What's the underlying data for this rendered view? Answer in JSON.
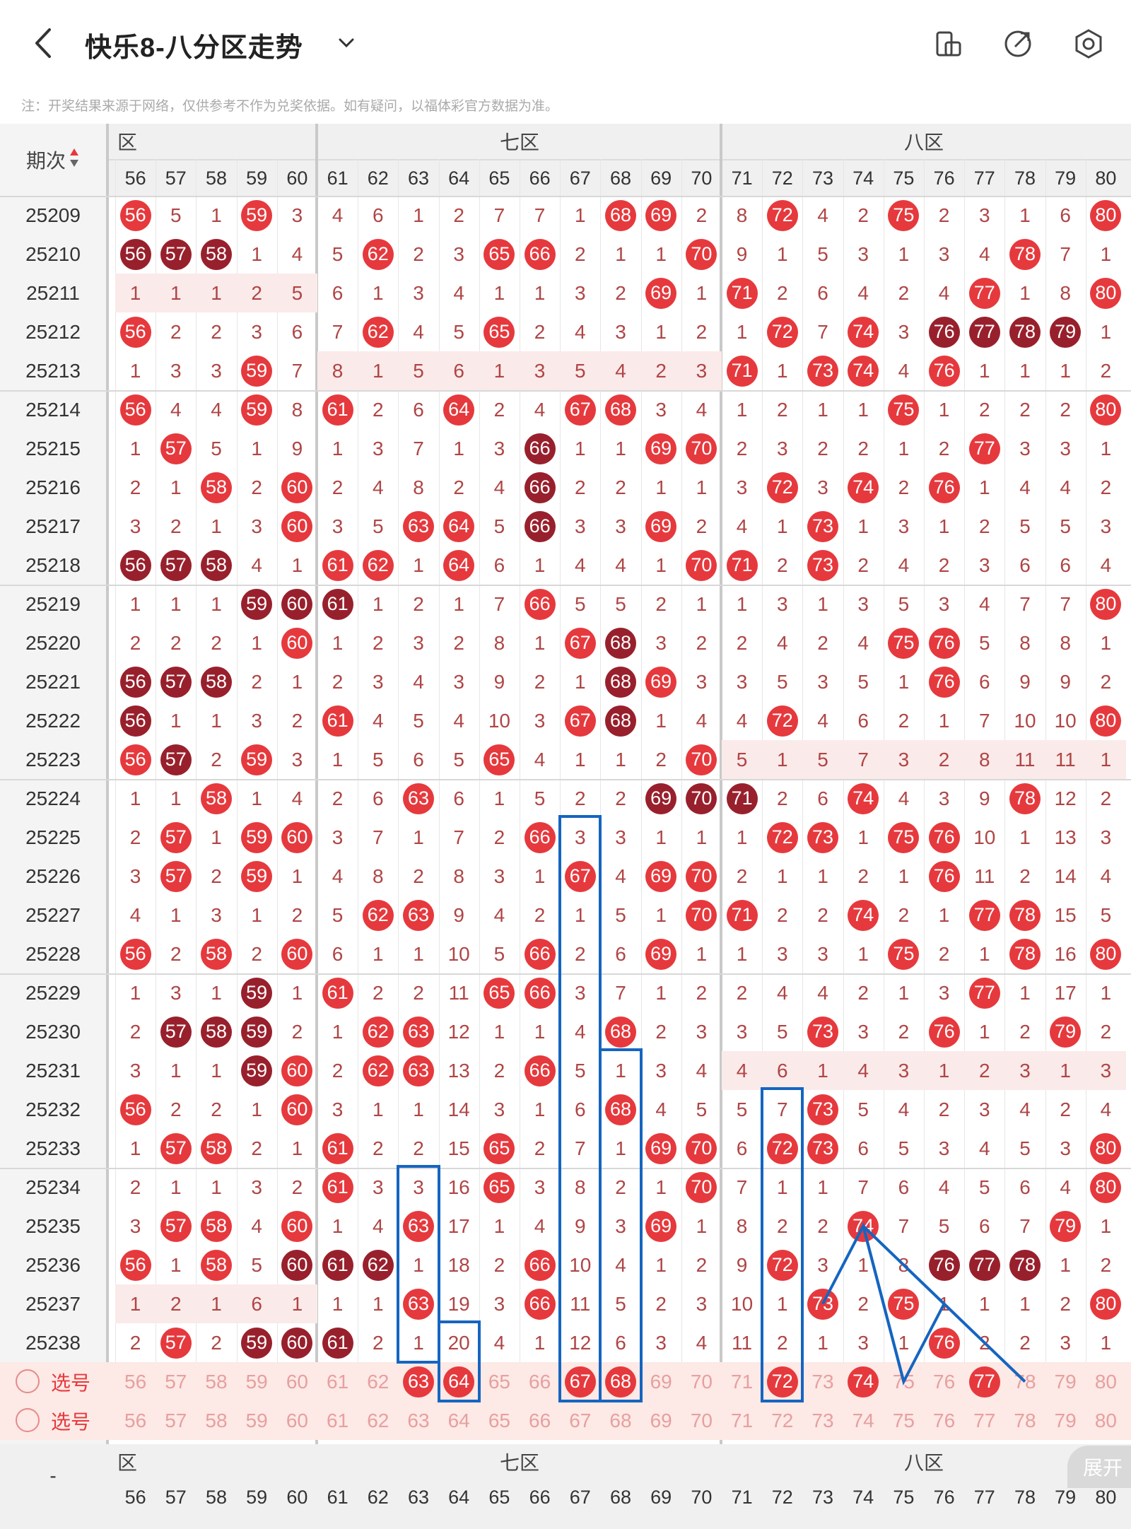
{
  "header": {
    "title": "快乐8-八分区走势",
    "back_icon": "back-arrow-icon",
    "dropdown_icon": "chevron-down-icon",
    "icons": [
      "phone-rotate-icon",
      "share-icon",
      "settings-icon"
    ]
  },
  "note": "注：开奖结果来源于网络，仅供参考不作为兑奖依据。如有疑问，以福体彩官方数据为准。",
  "table": {
    "period_header": "期次",
    "zones_top": [
      "六区",
      "七区",
      "八区"
    ],
    "columns": [
      56,
      57,
      58,
      59,
      60,
      61,
      62,
      63,
      64,
      65,
      66,
      67,
      68,
      69,
      70,
      71,
      72,
      73,
      74,
      75,
      76,
      77,
      78,
      79,
      80
    ],
    "rows": [
      {
        "p": "25209",
        "v": [
          "56",
          "5",
          "1",
          "59",
          "3",
          "4",
          "6",
          "1",
          "2",
          "7",
          "7",
          "1",
          "68",
          "69",
          "2",
          "8",
          "72",
          "4",
          "2",
          "75",
          "2",
          "3",
          "1",
          "6",
          "80"
        ]
      },
      {
        "p": "25210",
        "v": [
          "56",
          "57",
          "58",
          "1",
          "4",
          "5",
          "62",
          "2",
          "3",
          "65",
          "66",
          "2",
          "1",
          "1",
          "70",
          "9",
          "1",
          "5",
          "3",
          "1",
          "3",
          "4",
          "78",
          "7",
          "1"
        ]
      },
      {
        "p": "25211",
        "v": [
          "1",
          "1",
          "1",
          "2",
          "5",
          "6",
          "1",
          "3",
          "4",
          "1",
          "1",
          "3",
          "2",
          "69",
          "1",
          "71",
          "2",
          "6",
          "4",
          "2",
          "4",
          "77",
          "1",
          "8",
          "80"
        ]
      },
      {
        "p": "25212",
        "v": [
          "56",
          "2",
          "2",
          "3",
          "6",
          "7",
          "62",
          "4",
          "5",
          "65",
          "2",
          "4",
          "3",
          "1",
          "2",
          "1",
          "72",
          "7",
          "74",
          "3",
          "76",
          "77",
          "78",
          "79",
          "1"
        ]
      },
      {
        "p": "25213",
        "v": [
          "1",
          "3",
          "3",
          "59",
          "7",
          "8",
          "1",
          "5",
          "6",
          "1",
          "3",
          "5",
          "4",
          "2",
          "3",
          "71",
          "1",
          "73",
          "74",
          "4",
          "76",
          "1",
          "1",
          "1",
          "2"
        ]
      },
      {
        "p": "25214",
        "v": [
          "56",
          "4",
          "4",
          "59",
          "8",
          "61",
          "2",
          "6",
          "64",
          "2",
          "4",
          "67",
          "68",
          "3",
          "4",
          "1",
          "2",
          "1",
          "1",
          "75",
          "1",
          "2",
          "2",
          "2",
          "80"
        ]
      },
      {
        "p": "25215",
        "v": [
          "1",
          "57",
          "5",
          "1",
          "9",
          "1",
          "3",
          "7",
          "1",
          "3",
          "66",
          "1",
          "1",
          "69",
          "70",
          "2",
          "3",
          "2",
          "2",
          "1",
          "2",
          "77",
          "3",
          "3",
          "1"
        ]
      },
      {
        "p": "25216",
        "v": [
          "2",
          "1",
          "58",
          "2",
          "60",
          "2",
          "4",
          "8",
          "2",
          "4",
          "66",
          "2",
          "2",
          "1",
          "1",
          "3",
          "72",
          "3",
          "74",
          "2",
          "76",
          "1",
          "4",
          "4",
          "2"
        ]
      },
      {
        "p": "25217",
        "v": [
          "3",
          "2",
          "1",
          "3",
          "60",
          "3",
          "5",
          "63",
          "64",
          "5",
          "66",
          "3",
          "3",
          "69",
          "2",
          "4",
          "1",
          "73",
          "1",
          "3",
          "1",
          "2",
          "5",
          "5",
          "3"
        ]
      },
      {
        "p": "25218",
        "v": [
          "56",
          "57",
          "58",
          "4",
          "1",
          "61",
          "62",
          "1",
          "64",
          "6",
          "1",
          "4",
          "4",
          "1",
          "70",
          "71",
          "2",
          "73",
          "2",
          "4",
          "2",
          "3",
          "6",
          "6",
          "4"
        ]
      },
      {
        "p": "25219",
        "v": [
          "1",
          "1",
          "1",
          "59",
          "60",
          "61",
          "1",
          "2",
          "1",
          "7",
          "66",
          "5",
          "5",
          "2",
          "1",
          "1",
          "3",
          "1",
          "3",
          "5",
          "3",
          "4",
          "7",
          "7",
          "80"
        ]
      },
      {
        "p": "25220",
        "v": [
          "2",
          "2",
          "2",
          "1",
          "60",
          "1",
          "2",
          "3",
          "2",
          "8",
          "1",
          "67",
          "68",
          "3",
          "2",
          "2",
          "4",
          "2",
          "4",
          "75",
          "76",
          "5",
          "8",
          "8",
          "1"
        ]
      },
      {
        "p": "25221",
        "v": [
          "56",
          "57",
          "58",
          "2",
          "1",
          "2",
          "3",
          "4",
          "3",
          "9",
          "2",
          "1",
          "68",
          "69",
          "3",
          "3",
          "5",
          "3",
          "5",
          "1",
          "76",
          "6",
          "9",
          "9",
          "2"
        ]
      },
      {
        "p": "25222",
        "v": [
          "56",
          "1",
          "1",
          "3",
          "2",
          "61",
          "4",
          "5",
          "4",
          "10",
          "3",
          "67",
          "68",
          "1",
          "4",
          "4",
          "72",
          "4",
          "6",
          "2",
          "1",
          "7",
          "10",
          "10",
          "80"
        ]
      },
      {
        "p": "25223",
        "v": [
          "56",
          "57",
          "2",
          "59",
          "3",
          "1",
          "5",
          "6",
          "5",
          "65",
          "4",
          "1",
          "1",
          "2",
          "70",
          "5",
          "1",
          "5",
          "7",
          "3",
          "2",
          "8",
          "11",
          "11",
          "1"
        ]
      },
      {
        "p": "25224",
        "v": [
          "1",
          "1",
          "58",
          "1",
          "4",
          "2",
          "6",
          "63",
          "6",
          "1",
          "5",
          "2",
          "2",
          "69",
          "70",
          "71",
          "2",
          "6",
          "74",
          "4",
          "3",
          "9",
          "78",
          "12",
          "2"
        ]
      },
      {
        "p": "25225",
        "v": [
          "2",
          "57",
          "1",
          "59",
          "60",
          "3",
          "7",
          "1",
          "7",
          "2",
          "66",
          "3",
          "3",
          "1",
          "1",
          "1",
          "72",
          "73",
          "1",
          "75",
          "76",
          "10",
          "1",
          "13",
          "3"
        ]
      },
      {
        "p": "25226",
        "v": [
          "3",
          "57",
          "2",
          "59",
          "1",
          "4",
          "8",
          "2",
          "8",
          "3",
          "1",
          "67",
          "4",
          "69",
          "70",
          "2",
          "1",
          "1",
          "2",
          "1",
          "76",
          "11",
          "2",
          "14",
          "4"
        ]
      },
      {
        "p": "25227",
        "v": [
          "4",
          "1",
          "3",
          "1",
          "2",
          "5",
          "62",
          "63",
          "9",
          "4",
          "2",
          "1",
          "5",
          "1",
          "70",
          "71",
          "2",
          "2",
          "74",
          "2",
          "1",
          "77",
          "78",
          "15",
          "5"
        ]
      },
      {
        "p": "25228",
        "v": [
          "56",
          "2",
          "58",
          "2",
          "60",
          "6",
          "1",
          "1",
          "10",
          "5",
          "66",
          "2",
          "6",
          "69",
          "1",
          "1",
          "3",
          "3",
          "1",
          "75",
          "2",
          "1",
          "78",
          "16",
          "80"
        ]
      },
      {
        "p": "25229",
        "v": [
          "1",
          "3",
          "1",
          "59",
          "1",
          "61",
          "2",
          "2",
          "11",
          "65",
          "66",
          "3",
          "7",
          "1",
          "2",
          "2",
          "4",
          "4",
          "2",
          "1",
          "3",
          "77",
          "1",
          "17",
          "1"
        ]
      },
      {
        "p": "25230",
        "v": [
          "2",
          "57",
          "58",
          "59",
          "2",
          "1",
          "62",
          "63",
          "12",
          "1",
          "1",
          "4",
          "68",
          "2",
          "3",
          "3",
          "5",
          "73",
          "3",
          "2",
          "76",
          "1",
          "2",
          "79",
          "2"
        ]
      },
      {
        "p": "25231",
        "v": [
          "3",
          "1",
          "1",
          "59",
          "60",
          "2",
          "62",
          "63",
          "13",
          "2",
          "66",
          "5",
          "1",
          "3",
          "4",
          "4",
          "6",
          "1",
          "4",
          "3",
          "1",
          "2",
          "3",
          "1",
          "3"
        ]
      },
      {
        "p": "25232",
        "v": [
          "56",
          "2",
          "2",
          "1",
          "60",
          "3",
          "1",
          "1",
          "14",
          "3",
          "1",
          "6",
          "68",
          "4",
          "5",
          "5",
          "7",
          "73",
          "5",
          "4",
          "2",
          "3",
          "4",
          "2",
          "4"
        ]
      },
      {
        "p": "25233",
        "v": [
          "1",
          "57",
          "58",
          "2",
          "1",
          "61",
          "2",
          "2",
          "15",
          "65",
          "2",
          "7",
          "1",
          "69",
          "70",
          "6",
          "72",
          "73",
          "6",
          "5",
          "3",
          "4",
          "5",
          "3",
          "80"
        ]
      },
      {
        "p": "25234",
        "v": [
          "2",
          "1",
          "1",
          "3",
          "2",
          "61",
          "3",
          "3",
          "16",
          "65",
          "3",
          "8",
          "2",
          "1",
          "70",
          "7",
          "1",
          "1",
          "7",
          "6",
          "4",
          "5",
          "6",
          "4",
          "80"
        ]
      },
      {
        "p": "25235",
        "v": [
          "3",
          "57",
          "58",
          "4",
          "60",
          "1",
          "4",
          "63",
          "17",
          "1",
          "4",
          "9",
          "3",
          "69",
          "1",
          "8",
          "2",
          "2",
          "74",
          "7",
          "5",
          "6",
          "7",
          "79",
          "1"
        ]
      },
      {
        "p": "25236",
        "v": [
          "56",
          "1",
          "58",
          "5",
          "60",
          "61",
          "62",
          "1",
          "18",
          "2",
          "66",
          "10",
          "4",
          "1",
          "2",
          "9",
          "72",
          "3",
          "1",
          "8",
          "76",
          "77",
          "78",
          "1",
          "2"
        ]
      },
      {
        "p": "25237",
        "v": [
          "1",
          "2",
          "1",
          "6",
          "1",
          "1",
          "1",
          "63",
          "19",
          "3",
          "66",
          "11",
          "5",
          "2",
          "3",
          "10",
          "1",
          "73",
          "2",
          "75",
          "1",
          "1",
          "1",
          "2",
          "80"
        ]
      },
      {
        "p": "25238",
        "v": [
          "2",
          "57",
          "2",
          "59",
          "60",
          "61",
          "2",
          "1",
          "20",
          "4",
          "1",
          "12",
          "6",
          "3",
          "4",
          "11",
          "2",
          "1",
          "3",
          "1",
          "76",
          "2",
          "2",
          "3",
          "1"
        ]
      }
    ],
    "select_rows": [
      {
        "label": "选号",
        "v": [
          "56",
          "57",
          "58",
          "59",
          "60",
          "61",
          "62",
          "63",
          "64",
          "65",
          "66",
          "67",
          "68",
          "69",
          "70",
          "71",
          "72",
          "73",
          "74",
          "75",
          "76",
          "77",
          "78",
          "79",
          "80"
        ]
      },
      {
        "label": "选号",
        "v": [
          "56",
          "57",
          "58",
          "59",
          "60",
          "61",
          "62",
          "63",
          "64",
          "65",
          "66",
          "67",
          "68",
          "69",
          "70",
          "71",
          "72",
          "73",
          "74",
          "75",
          "76",
          "77",
          "78",
          "79",
          "80"
        ]
      }
    ],
    "bottom_period": "-",
    "zones_bottom": [
      "六区",
      "七区",
      "八区"
    ],
    "bottom_numbers": [
      "56",
      "57",
      "58",
      "59",
      "60",
      "61",
      "62",
      "63",
      "64",
      "65",
      "66",
      "67",
      "68",
      "69",
      "70",
      "71",
      "72",
      "73",
      "74",
      "75",
      "76",
      "77",
      "78",
      "79",
      "80"
    ]
  },
  "expand_label": "展开",
  "colors": {
    "ball_red": "#e6393d",
    "ball_dark": "#98202c",
    "box_blue": "#1565c0",
    "miss_text": "#b04545",
    "header_bg": "#f0f0f0",
    "highlight_row": "#fbeaea",
    "select_row_bg": "#fde9e5"
  }
}
